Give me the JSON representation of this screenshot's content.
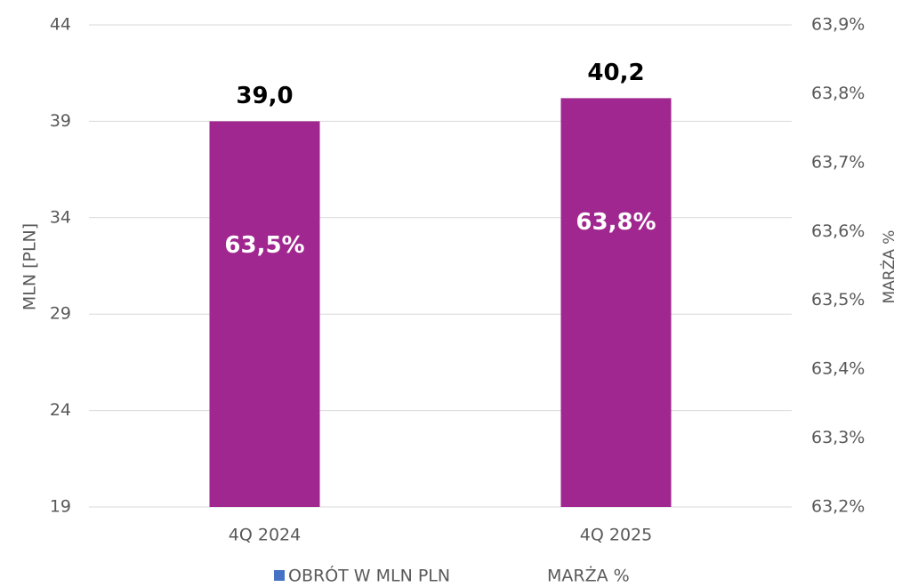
{
  "chart_data": {
    "type": "bar",
    "categories": [
      "4Q 2024",
      "4Q 2025"
    ],
    "series": [
      {
        "name": "OBRÓT W MLN PLN",
        "color": "#a0278f",
        "legend_color": "#4472c4",
        "values": [
          39.0,
          40.2
        ],
        "value_labels": [
          "39,0",
          "40,2"
        ]
      },
      {
        "name": "MARŻA %",
        "axis": "y2",
        "values": [
          63.5,
          63.8
        ],
        "value_labels": [
          "63,5%",
          "63,8%"
        ]
      }
    ],
    "ylabel": "MLN [PLN]",
    "y2label": "MARŻA %",
    "ylim": [
      19,
      44
    ],
    "yticks": [
      19,
      24,
      29,
      34,
      39,
      44
    ],
    "y2lim": [
      63.2,
      63.9
    ],
    "y2ticks": [
      {
        "value": 63.2,
        "label": "63,2%"
      },
      {
        "value": 63.3,
        "label": "63,3%"
      },
      {
        "value": 63.4,
        "label": "63,4%"
      },
      {
        "value": 63.5,
        "label": "63,5%"
      },
      {
        "value": 63.6,
        "label": "63,6%"
      },
      {
        "value": 63.7,
        "label": "63,7%"
      },
      {
        "value": 63.8,
        "label": "63,8%"
      },
      {
        "value": 63.9,
        "label": "63,9%"
      }
    ],
    "grid": true,
    "legend": "bottom"
  }
}
